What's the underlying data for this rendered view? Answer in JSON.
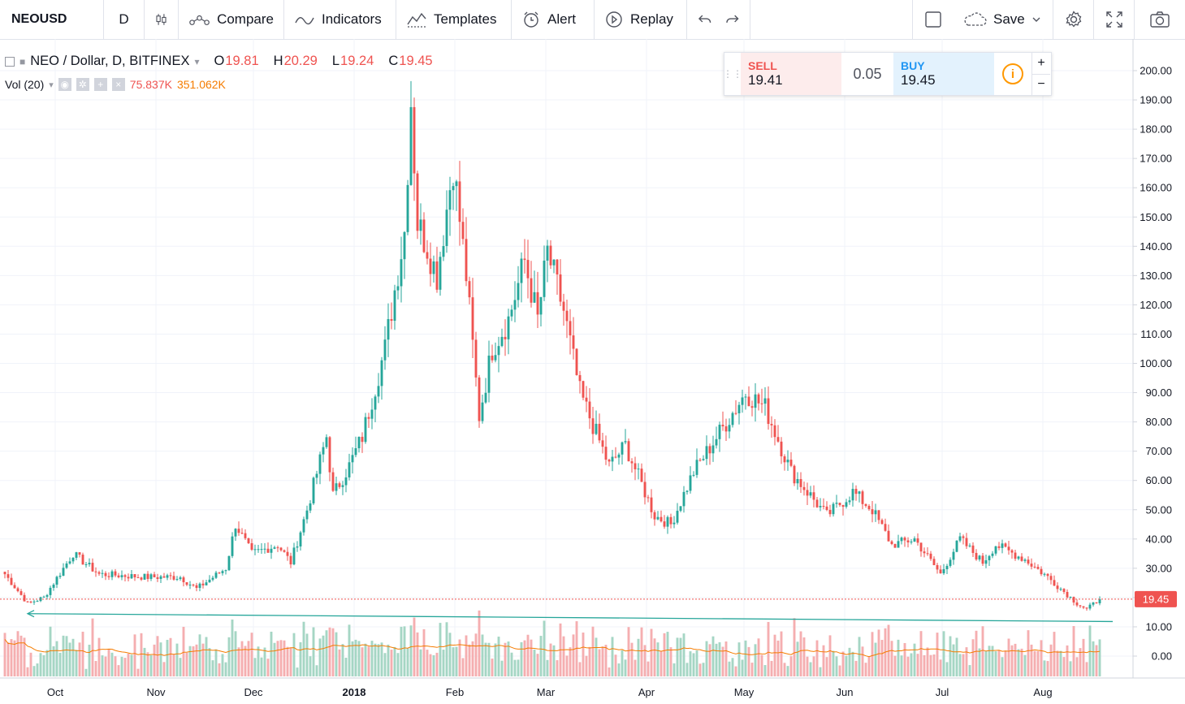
{
  "toolbar": {
    "symbol": "NEOUSD",
    "interval": "D",
    "compare": "Compare",
    "indicators": "Indicators",
    "templates": "Templates",
    "alert": "Alert",
    "replay": "Replay",
    "save": "Save"
  },
  "legend": {
    "title": "NEO / Dollar, D, BITFINEX",
    "o_label": "O",
    "o_value": "19.81",
    "h_label": "H",
    "h_value": "20.29",
    "l_label": "L",
    "l_value": "19.24",
    "c_label": "C",
    "c_value": "19.45"
  },
  "volume_legend": {
    "name": "Vol (20)",
    "volume": "75.837K",
    "ma": "351.062K"
  },
  "trade": {
    "sell_label": "SELL",
    "sell_value": "19.41",
    "spread": "0.05",
    "buy_label": "BUY",
    "buy_value": "19.45",
    "info_icon": "i",
    "plus": "+",
    "minus": "−"
  },
  "chart_data": {
    "type": "candlestick",
    "symbol": "NEOUSD",
    "exchange": "BITFINEX",
    "interval": "D",
    "y_ticks": [
      "200.00",
      "190.00",
      "180.00",
      "170.00",
      "160.00",
      "150.00",
      "140.00",
      "130.00",
      "120.00",
      "110.00",
      "100.00",
      "90.00",
      "80.00",
      "70.00",
      "60.00",
      "50.00",
      "40.00",
      "30.00",
      "20.00",
      "10.00",
      "0.00"
    ],
    "y_range": [
      -5,
      202
    ],
    "x_ticks": [
      "Oct",
      "Nov",
      "Dec",
      "2018",
      "Feb",
      "Mar",
      "Apr",
      "May",
      "Jun",
      "Jul",
      "Aug"
    ],
    "last_price": "19.45",
    "up_color": "#26a69a",
    "down_color": "#ef5350",
    "volume_up_color": "#a5d6c4",
    "volume_down_color": "#f5aeb0",
    "volume_ma_color": "#f57c00",
    "trendline_color": "#26a69a",
    "close_keypoints": [
      {
        "date": "2017-09-13",
        "close": 28
      },
      {
        "date": "2017-09-20",
        "close": 18
      },
      {
        "date": "2017-09-25",
        "close": 20
      },
      {
        "date": "2017-10-04",
        "close": 35
      },
      {
        "date": "2017-10-12",
        "close": 28
      },
      {
        "date": "2017-10-27",
        "close": 27
      },
      {
        "date": "2017-11-06",
        "close": 27
      },
      {
        "date": "2017-11-11",
        "close": 23
      },
      {
        "date": "2017-11-20",
        "close": 30
      },
      {
        "date": "2017-11-23",
        "close": 45
      },
      {
        "date": "2017-11-28",
        "close": 35
      },
      {
        "date": "2017-12-06",
        "close": 38
      },
      {
        "date": "2017-12-10",
        "close": 32
      },
      {
        "date": "2017-12-15",
        "close": 50
      },
      {
        "date": "2017-12-21",
        "close": 75
      },
      {
        "date": "2017-12-23",
        "close": 55
      },
      {
        "date": "2017-12-28",
        "close": 65
      },
      {
        "date": "2018-01-01",
        "close": 75
      },
      {
        "date": "2018-01-08",
        "close": 105
      },
      {
        "date": "2018-01-14",
        "close": 145
      },
      {
        "date": "2018-01-16",
        "close": 190
      },
      {
        "date": "2018-01-18",
        "close": 148
      },
      {
        "date": "2018-01-21",
        "close": 140
      },
      {
        "date": "2018-01-24",
        "close": 130
      },
      {
        "date": "2018-01-29",
        "close": 168
      },
      {
        "date": "2018-02-02",
        "close": 130
      },
      {
        "date": "2018-02-06",
        "close": 82
      },
      {
        "date": "2018-02-10",
        "close": 105
      },
      {
        "date": "2018-02-15",
        "close": 115
      },
      {
        "date": "2018-02-20",
        "close": 135
      },
      {
        "date": "2018-02-24",
        "close": 115
      },
      {
        "date": "2018-02-27",
        "close": 138
      },
      {
        "date": "2018-03-04",
        "close": 118
      },
      {
        "date": "2018-03-09",
        "close": 90
      },
      {
        "date": "2018-03-18",
        "close": 65
      },
      {
        "date": "2018-03-23",
        "close": 72
      },
      {
        "date": "2018-04-01",
        "close": 48
      },
      {
        "date": "2018-04-06",
        "close": 45
      },
      {
        "date": "2018-04-13",
        "close": 63
      },
      {
        "date": "2018-04-22",
        "close": 78
      },
      {
        "date": "2018-04-29",
        "close": 90
      },
      {
        "date": "2018-05-05",
        "close": 85
      },
      {
        "date": "2018-05-13",
        "close": 63
      },
      {
        "date": "2018-05-24",
        "close": 48
      },
      {
        "date": "2018-06-01",
        "close": 56
      },
      {
        "date": "2018-06-07",
        "close": 50
      },
      {
        "date": "2018-06-13",
        "close": 38
      },
      {
        "date": "2018-06-20",
        "close": 40
      },
      {
        "date": "2018-06-28",
        "close": 28
      },
      {
        "date": "2018-07-04",
        "close": 40
      },
      {
        "date": "2018-07-11",
        "close": 32
      },
      {
        "date": "2018-07-15",
        "close": 38
      },
      {
        "date": "2018-07-24",
        "close": 33
      },
      {
        "date": "2018-07-31",
        "close": 27
      },
      {
        "date": "2018-08-09",
        "close": 18
      },
      {
        "date": "2018-08-12",
        "close": 16
      },
      {
        "date": "2018-08-16",
        "close": 19.45
      }
    ],
    "trendline": [
      {
        "date": "2017-09-20",
        "price": 14.5
      },
      {
        "date": "2018-08-20",
        "price": 11.8
      }
    ]
  }
}
